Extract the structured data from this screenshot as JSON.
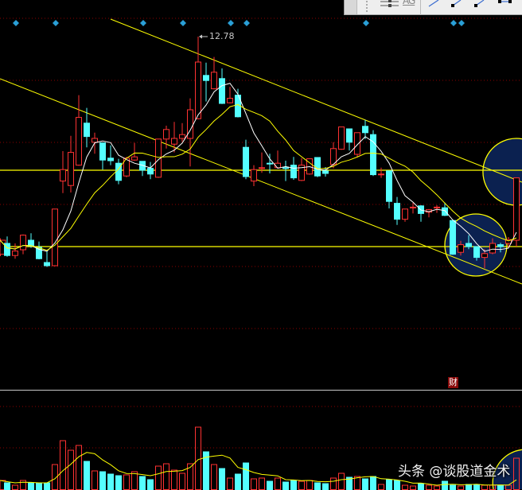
{
  "chart_data": {
    "type": "candlestick",
    "peak_label": "12.78",
    "colors": {
      "up": "#ff3232",
      "down": "#54ffff",
      "ma_short": "#ffffff",
      "ma_long": "#ffff00",
      "grid": "#8b0000",
      "trendline": "#ffff00",
      "highlight_fill": "#0b2150",
      "marker": "#2a9fd6"
    },
    "ma_periods": [
      5,
      10
    ],
    "volume_ma_period": 5,
    "horizontal_levels": [
      10.68,
      9.48
    ],
    "event_marker_indices": [
      2,
      7,
      18,
      23,
      29,
      31,
      46,
      57,
      58
    ],
    "badge": {
      "index": 57,
      "text": "财"
    },
    "ohlc": [
      [
        9.36,
        9.61,
        9.33,
        9.58
      ],
      [
        9.53,
        9.64,
        9.32,
        9.34
      ],
      [
        9.34,
        9.53,
        9.29,
        9.41
      ],
      [
        9.43,
        9.67,
        9.36,
        9.66
      ],
      [
        9.58,
        9.69,
        9.46,
        9.49
      ],
      [
        9.47,
        9.56,
        9.28,
        9.29
      ],
      [
        9.23,
        9.41,
        9.16,
        9.18
      ],
      [
        9.18,
        10.07,
        9.17,
        10.07
      ],
      [
        10.51,
        10.98,
        10.32,
        10.69
      ],
      [
        10.44,
        11.22,
        10.33,
        10.96
      ],
      [
        10.76,
        11.86,
        10.75,
        11.51
      ],
      [
        11.42,
        11.66,
        11.04,
        11.21
      ],
      [
        11.12,
        11.27,
        10.94,
        11.18
      ],
      [
        11.11,
        11.11,
        10.69,
        10.84
      ],
      [
        10.87,
        11.07,
        10.76,
        10.83
      ],
      [
        10.79,
        10.86,
        10.46,
        10.52
      ],
      [
        10.59,
        10.89,
        10.57,
        10.87
      ],
      [
        10.84,
        11.11,
        10.83,
        10.89
      ],
      [
        10.82,
        10.82,
        10.59,
        10.68
      ],
      [
        10.71,
        10.81,
        10.54,
        10.62
      ],
      [
        10.57,
        11.17,
        10.56,
        11.17
      ],
      [
        11.17,
        11.38,
        11.02,
        11.32
      ],
      [
        11.09,
        11.44,
        10.96,
        11.18
      ],
      [
        11.18,
        11.42,
        11.13,
        11.24
      ],
      [
        11.18,
        11.81,
        10.74,
        11.63
      ],
      [
        11.49,
        12.78,
        11.48,
        12.38
      ],
      [
        12.17,
        12.37,
        11.76,
        12.09
      ],
      [
        11.96,
        12.46,
        11.95,
        12.22
      ],
      [
        12.12,
        12.28,
        11.72,
        11.73
      ],
      [
        11.74,
        11.99,
        11.73,
        11.81
      ],
      [
        11.86,
        11.96,
        11.51,
        11.52
      ],
      [
        11.04,
        11.16,
        10.54,
        10.58
      ],
      [
        10.51,
        10.76,
        10.43,
        10.69
      ],
      [
        10.71,
        10.96,
        10.64,
        10.72
      ],
      [
        10.79,
        10.94,
        10.63,
        10.78
      ],
      [
        10.72,
        10.99,
        10.71,
        10.79
      ],
      [
        10.72,
        10.83,
        10.51,
        10.71
      ],
      [
        10.76,
        10.89,
        10.53,
        10.56
      ],
      [
        10.52,
        10.87,
        10.51,
        10.76
      ],
      [
        10.62,
        10.86,
        10.61,
        10.86
      ],
      [
        10.88,
        10.88,
        10.57,
        10.59
      ],
      [
        10.67,
        10.73,
        10.58,
        10.63
      ],
      [
        10.77,
        11.12,
        10.71,
        11.02
      ],
      [
        11.01,
        11.36,
        11.0,
        11.36
      ],
      [
        11.33,
        11.33,
        10.99,
        11.12
      ],
      [
        10.93,
        11.27,
        10.88,
        11.27
      ],
      [
        11.37,
        11.47,
        11.17,
        11.27
      ],
      [
        11.24,
        11.31,
        10.59,
        10.61
      ],
      [
        10.61,
        10.72,
        10.56,
        10.62
      ],
      [
        10.67,
        10.67,
        10.08,
        10.19
      ],
      [
        10.16,
        10.26,
        9.82,
        9.91
      ],
      [
        9.91,
        10.07,
        9.87,
        10.07
      ],
      [
        10.09,
        10.17,
        10.0,
        10.1
      ],
      [
        10.12,
        10.13,
        9.87,
        10.0
      ],
      [
        10.02,
        10.07,
        9.94,
        10.06
      ],
      [
        10.09,
        10.13,
        10.01,
        10.1
      ],
      [
        10.09,
        10.17,
        9.96,
        9.97
      ],
      [
        9.89,
        9.9,
        9.35,
        9.36
      ],
      [
        9.39,
        9.57,
        9.34,
        9.51
      ],
      [
        9.53,
        9.66,
        9.44,
        9.48
      ],
      [
        9.48,
        9.48,
        9.26,
        9.31
      ],
      [
        9.31,
        9.44,
        9.14,
        9.37
      ],
      [
        9.38,
        9.61,
        9.36,
        9.53
      ],
      [
        9.51,
        9.54,
        9.39,
        9.48
      ],
      [
        9.53,
        9.63,
        9.46,
        9.59
      ],
      [
        9.58,
        10.56,
        9.48,
        10.56
      ]
    ],
    "volume": [
      12,
      9,
      6,
      12,
      9,
      9,
      9,
      32,
      62,
      50,
      56,
      36,
      24,
      23,
      20,
      18,
      19,
      23,
      17,
      13,
      30,
      33,
      25,
      21,
      33,
      79,
      48,
      32,
      27,
      15,
      20,
      34,
      14,
      15,
      11,
      15,
      10,
      12,
      11,
      12,
      9,
      8,
      15,
      21,
      16,
      17,
      14,
      17,
      7,
      13,
      12,
      6,
      5,
      8,
      6,
      5,
      11,
      6,
      5,
      7,
      7,
      6,
      6,
      6,
      6,
      40
    ]
  },
  "toolbar": {
    "text_tool_label": "AG"
  },
  "watermark": "头条 @谈股道金术"
}
